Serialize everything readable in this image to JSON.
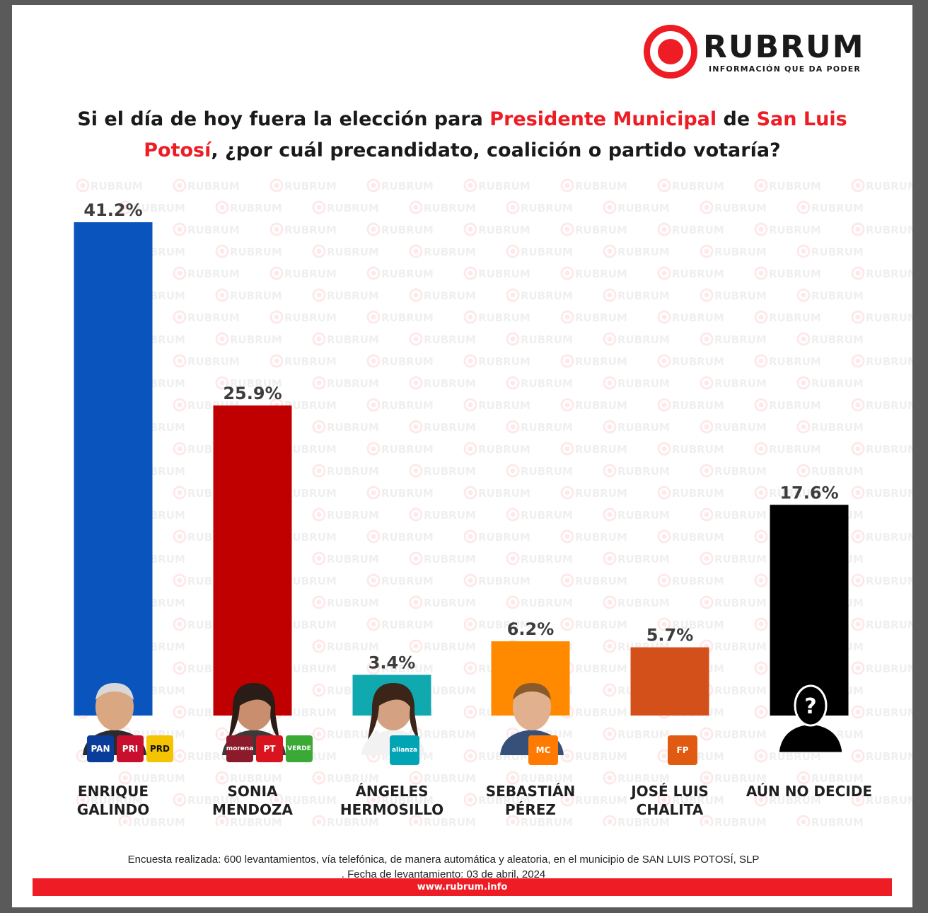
{
  "brand": {
    "name": "RUBRUM",
    "tagline": "INFORMACIÓN QUE DA PODER",
    "accent_color": "#ee1c24",
    "watermark_text": "RUBRUM"
  },
  "title": {
    "part1": "Si el día de hoy fuera la elección para ",
    "highlight1": "Presidente Municipal",
    "part2": " de ",
    "highlight2": "San Luis Potosí",
    "part3": ", ¿por cuál precandidato, coalición o partido votaría?"
  },
  "chart_data": {
    "type": "bar",
    "categories": [
      [
        "ENRIQUE",
        "GALINDO"
      ],
      [
        "SONIA",
        "MENDOZA"
      ],
      [
        "ÁNGELES",
        "HERMOSILLO"
      ],
      [
        "SEBASTIÁN",
        "PÉREZ"
      ],
      [
        "JOSÉ LUIS",
        "CHALITA"
      ],
      [
        "AÚN NO DECIDE"
      ]
    ],
    "values": [
      41.2,
      25.9,
      3.4,
      6.2,
      5.7,
      17.6
    ],
    "value_labels": [
      "41.2%",
      "25.9%",
      "3.4%",
      "6.2%",
      "5.7%",
      "17.6%"
    ],
    "colors": [
      "#0a55bd",
      "#c00000",
      "#10a9b0",
      "#ff8a00",
      "#d4501b",
      "#000000"
    ],
    "ylim": [
      0,
      41.2
    ],
    "grid": false,
    "legend": "none"
  },
  "party_logos": [
    [
      {
        "label": "PAN",
        "color": "#0a3d9a"
      },
      {
        "label": "PRI",
        "color": "#c8102e"
      },
      {
        "label": "PRD",
        "color": "#f5c400"
      }
    ],
    [
      {
        "label": "morena",
        "color": "#8b1a2b"
      },
      {
        "label": "PT",
        "color": "#d9141e"
      },
      {
        "label": "VERDE",
        "color": "#3aa935"
      }
    ],
    [
      {
        "label": "alianza",
        "color": "#00a4b4"
      }
    ],
    [
      {
        "label": "MC",
        "color": "#ff7a00"
      }
    ],
    [
      {
        "label": "FP",
        "color": "#e05a12"
      }
    ],
    []
  ],
  "unknown_icon": "question-mark-silhouette-icon",
  "footnote": {
    "line1": "Encuesta realizada: 600 levantamientos, vía telefónica, de manera automática y aleatoria, en el municipio de SAN LUIS POTOSÍ, SLP",
    "line2": ". Fecha de levantamiento: 03 de abril, 2024"
  },
  "footer": {
    "url": "www.rubrum.info"
  }
}
